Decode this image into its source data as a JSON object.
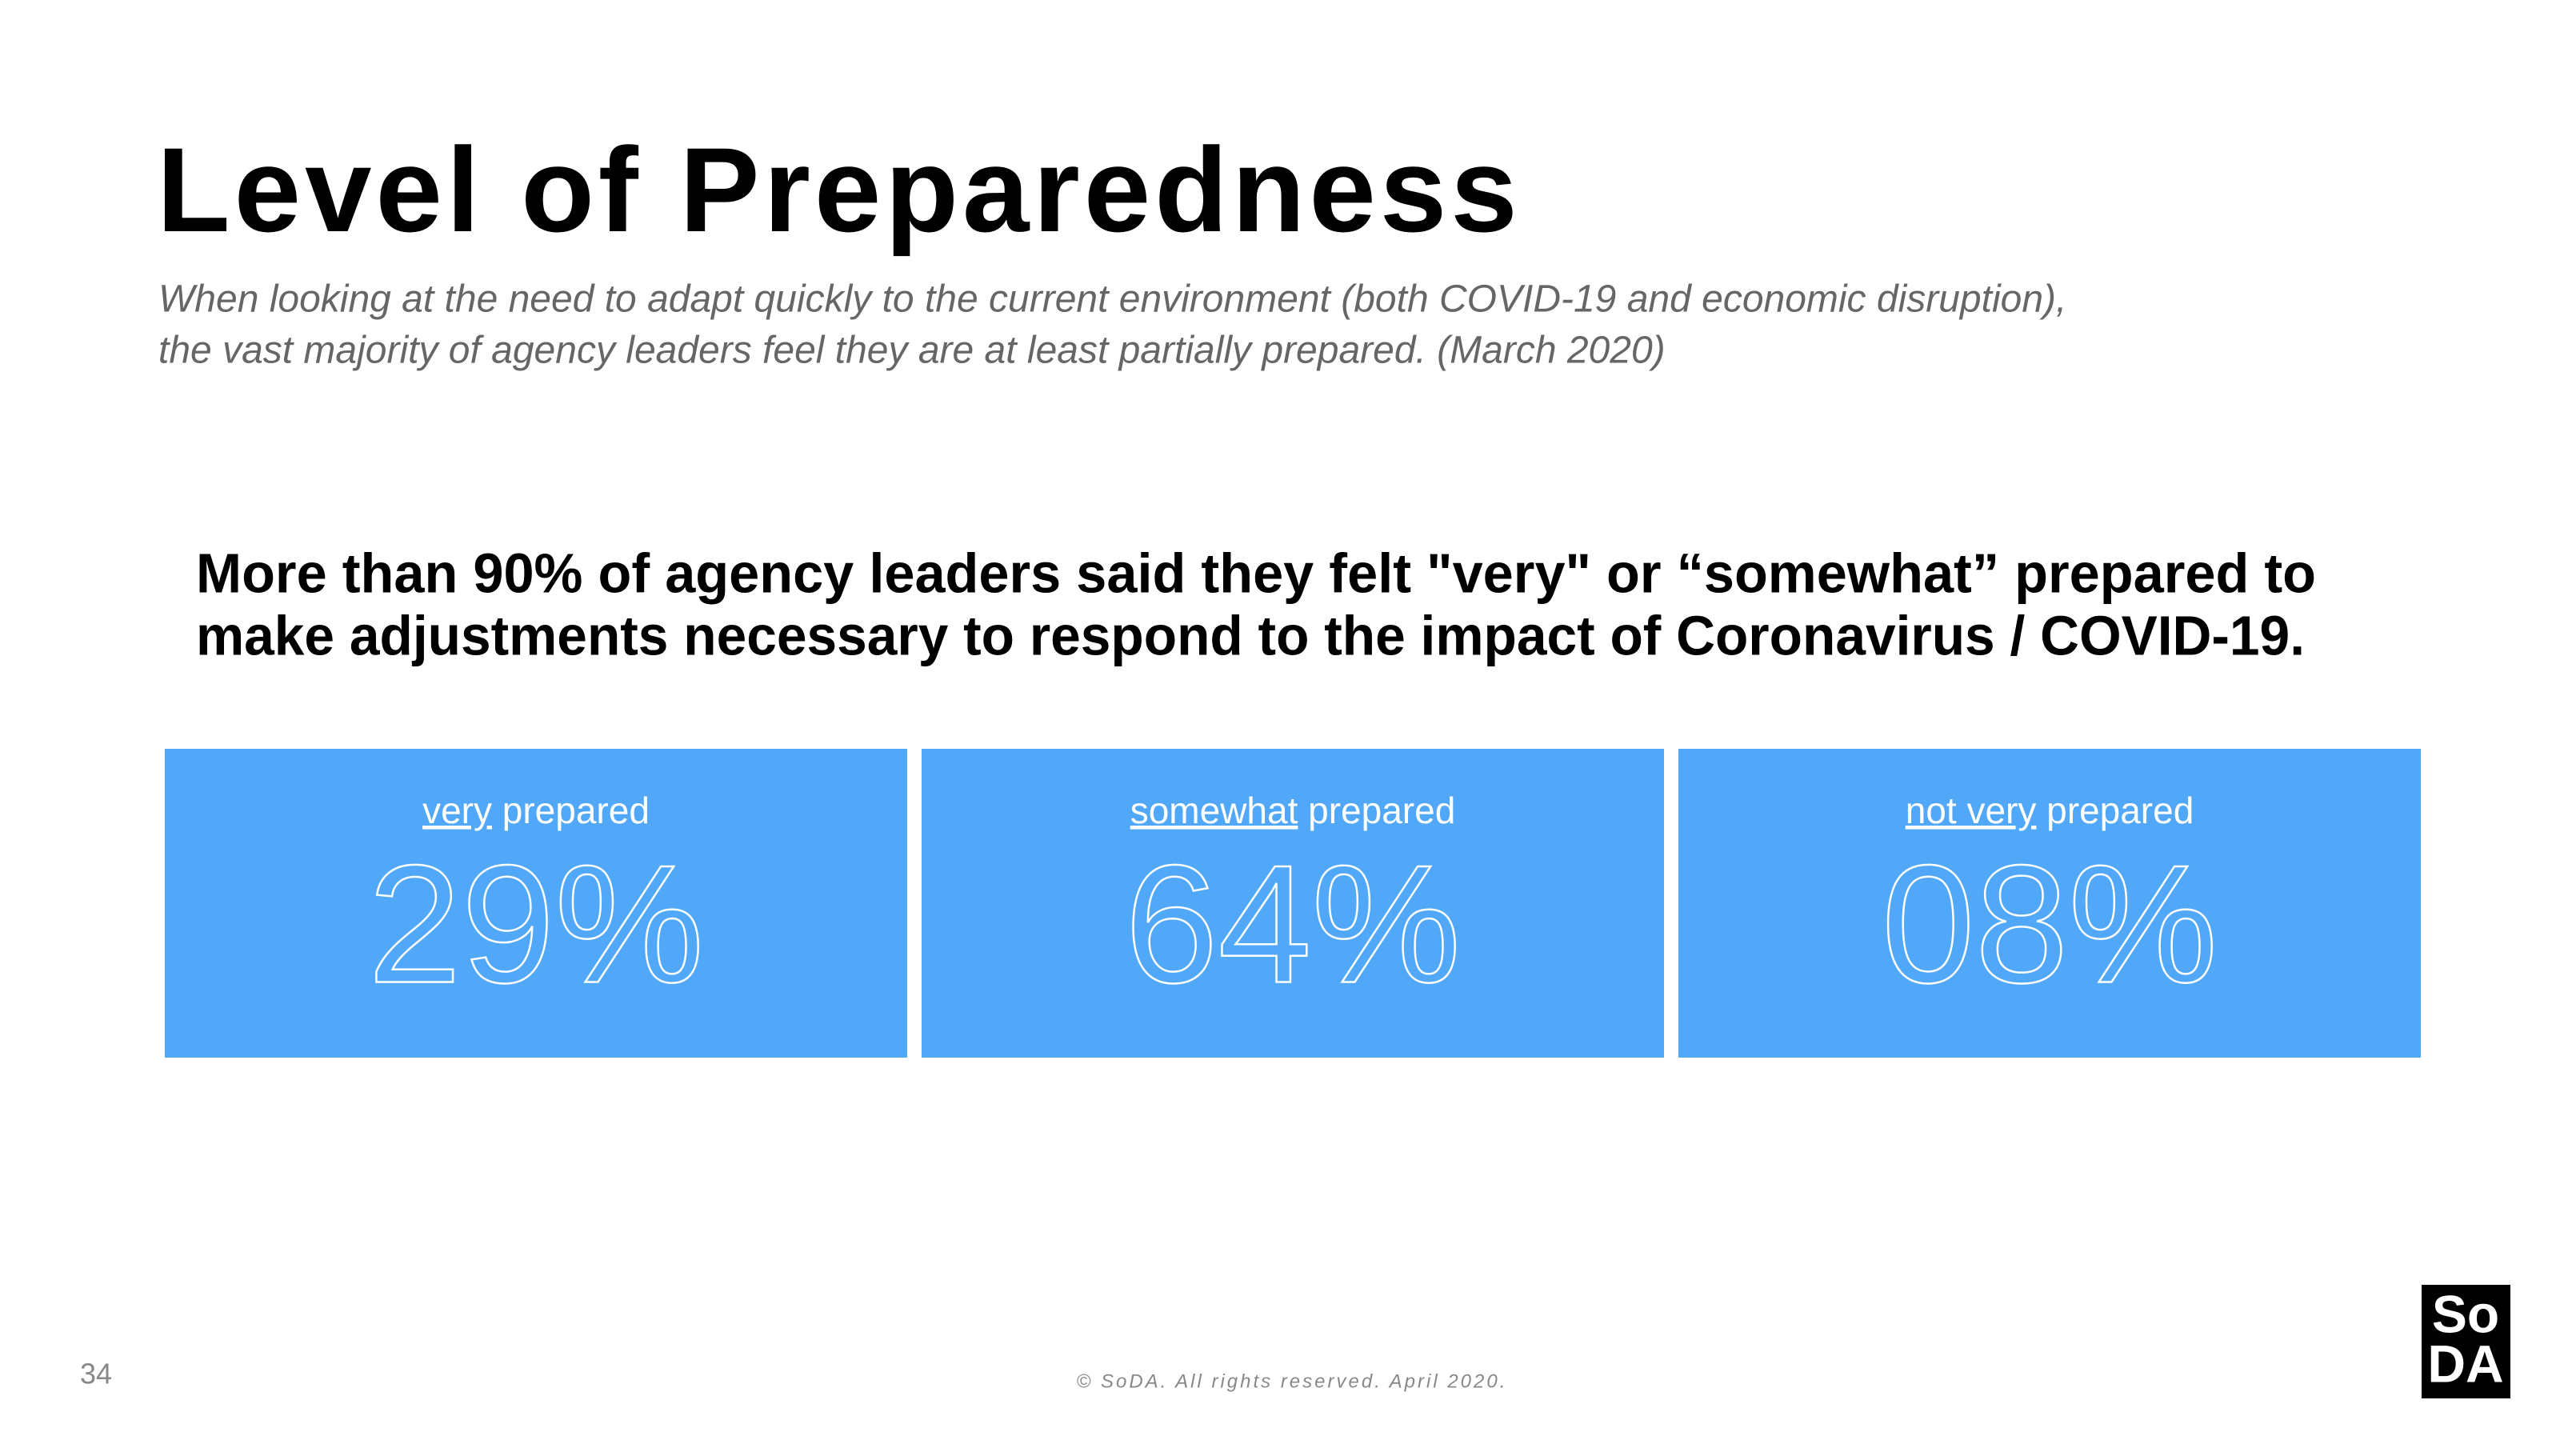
{
  "header": {
    "title": "Level of Preparedness",
    "subtitle": [
      "When looking at the need to adapt quickly to the current environment (both COVID-19 and economic disruption),",
      "the vast majority of agency leaders feel they are at least partially prepared. (March 2020)"
    ]
  },
  "headline": [
    "More than 90% of agency leaders said they felt \"very\" or “somewhat” prepared to",
    "make adjustments necessary to respond to the impact of Coronavirus / COVID-19."
  ],
  "cards": [
    {
      "emphasis": "very",
      "rest": "prepared",
      "value": "29%"
    },
    {
      "emphasis": "somewhat",
      "rest": "prepared",
      "value": "64%"
    },
    {
      "emphasis": "not very",
      "rest": "prepared",
      "value": "08%"
    }
  ],
  "footer": {
    "page_number": "34",
    "copyright": "© SoDA. All rights reserved. April 2020.",
    "logo": [
      "So",
      "DA"
    ]
  }
}
